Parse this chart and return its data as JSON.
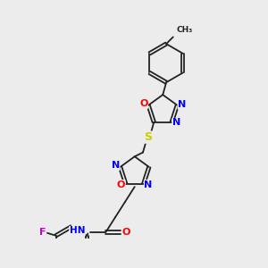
{
  "background_color": "#ececec",
  "figsize": [
    3.0,
    3.0
  ],
  "dpi": 100,
  "bond_color": "#222222",
  "bond_lw": 1.3,
  "atom_colors": {
    "O": "#ff0000",
    "N": "#0000ff",
    "S": "#cccc00",
    "F": "#cc00cc",
    "Cl": "#22aa22",
    "C": "#222222",
    "H": "#555555"
  }
}
